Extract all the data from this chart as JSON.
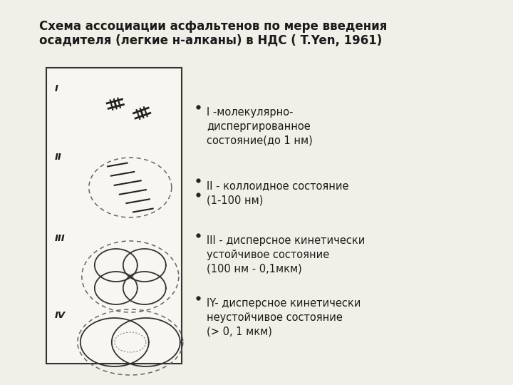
{
  "title_line1": "Схема ассоциации асфальтенов по мере введения",
  "title_line2": "осадителя (легкие н-алканы) в НДС ( T.Yen, 1961)",
  "bullet_items_1": "I -молекулярно-\nдиспергированное\nсостояние(до 1 нм)",
  "bullet_items_2": "II - коллоидное состояние",
  "bullet_items_2b": "(1-100 нм)",
  "bullet_items_3": "III - дисперсное кинетически\nустойчивое состояние\n(100 нм - 0,1мкм)",
  "bullet_items_4": "IY- дисперсное кинетически\nнеустойчивое состояние\n(> 0, 1 мкм)",
  "bg_color": "#f0efe8",
  "box_facecolor": "#f7f6f0",
  "text_color": "#1a1a1a",
  "title_fontsize": 12,
  "body_fontsize": 10.5,
  "label_fontsize": 9.5
}
